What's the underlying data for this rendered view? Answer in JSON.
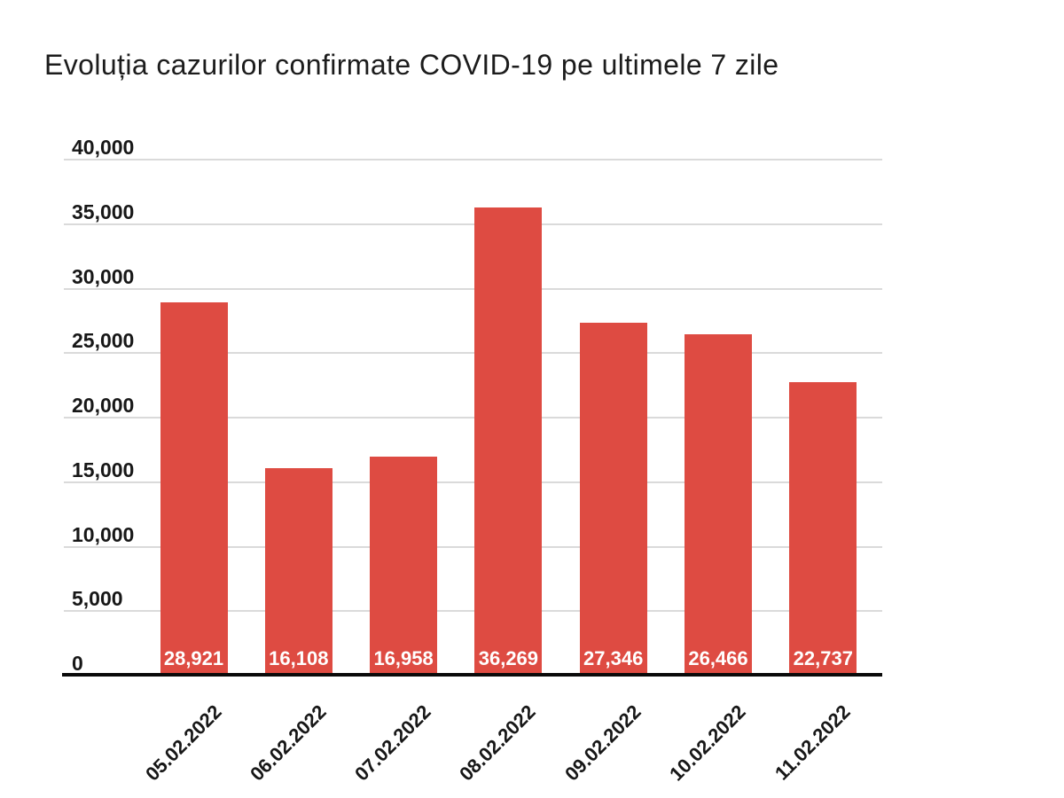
{
  "page": {
    "background": "#ffffff"
  },
  "chart_data": {
    "type": "bar",
    "title": "Evoluția cazurilor confirmate COVID-19 pe ultimele 7 zile",
    "categories": [
      "05.02.2022",
      "06.02.2022",
      "07.02.2022",
      "08.02.2022",
      "09.02.2022",
      "10.02.2022",
      "11.02.2022"
    ],
    "values": [
      28921,
      16108,
      16958,
      36269,
      27346,
      26466,
      22737
    ],
    "value_labels": [
      "28,921",
      "16,108",
      "16,958",
      "36,269",
      "27,346",
      "26,466",
      "22,737"
    ],
    "xlabel": "",
    "ylabel": "",
    "ylim": [
      0,
      40000
    ],
    "ytick_step": 5000,
    "yticks": [
      0,
      5000,
      10000,
      15000,
      20000,
      25000,
      30000,
      35000,
      40000
    ],
    "ytick_labels": [
      "0",
      "5,000",
      "10,000",
      "15,000",
      "20,000",
      "25,000",
      "30,000",
      "35,000",
      "40,000"
    ],
    "grid": true,
    "legend": false,
    "value_labels_position": "inside-bottom",
    "xtick_rotation_deg": -45,
    "colors": {
      "bar": "#de4b42",
      "gridline": "#dadada",
      "axis": "#0a0a0a",
      "tick_text": "#171717",
      "title_text": "#1c1c1c",
      "value_text": "#ffffff",
      "background": "#ffffff"
    }
  }
}
